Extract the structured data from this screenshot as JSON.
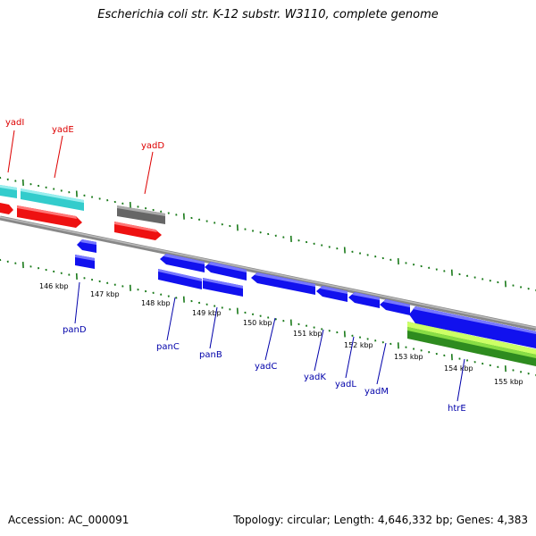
{
  "title": "Escherichia coli str. K-12 substr. W3110, complete genome",
  "footer": {
    "accession": "Accession: AC_000091",
    "topology": "Topology: circular; Length: 4,646,332 bp; Genes: 4,383"
  },
  "colors": {
    "backbone": "#888888",
    "tick": "#1a7a1a",
    "cyan_gene": "#33cccc",
    "red_gene": "#ee1111",
    "gray_feature": "#666666",
    "blue_gene": "#1111ee",
    "green_feature": "#44aa22",
    "lime_feature": "#ccff66",
    "red_label": "#dd0000",
    "blue_label": "#0000aa"
  },
  "scale_labels": [
    "146 kbp",
    "147 kbp",
    "148 kbp",
    "149 kbp",
    "150 kbp",
    "151 kbp",
    "152 kbp",
    "153 kbp",
    "154 kbp",
    "155 kbp"
  ],
  "upper_gene_labels": [
    {
      "name": "yadI",
      "color": "red"
    },
    {
      "name": "yadE",
      "color": "red"
    },
    {
      "name": "yadD",
      "color": "red"
    }
  ],
  "lower_gene_labels": [
    {
      "name": "panD"
    },
    {
      "name": "panC"
    },
    {
      "name": "panB"
    },
    {
      "name": "yadC"
    },
    {
      "name": "yadK"
    },
    {
      "name": "yadL"
    },
    {
      "name": "yadM"
    },
    {
      "name": "htrE"
    }
  ]
}
